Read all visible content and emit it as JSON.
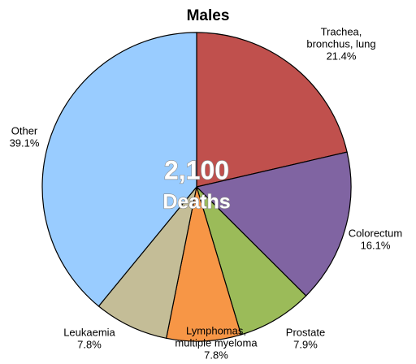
{
  "chart_data": {
    "type": "pie",
    "title": "Males",
    "categories": [
      [
        "Trachea,",
        "bronchus, lung"
      ],
      [
        "Colorectum"
      ],
      [
        "Prostate"
      ],
      [
        "Lymphomas,",
        "multiple myeloma"
      ],
      [
        "Leukaemia"
      ],
      [
        "Other"
      ]
    ],
    "values": [
      21.4,
      16.1,
      7.9,
      7.8,
      7.8,
      39.1
    ],
    "value_labels": [
      "21.4%",
      "16.1%",
      "7.9%",
      "7.8%",
      "7.8%",
      "39.1%"
    ],
    "colors": [
      "#c0504d",
      "#8064a2",
      "#9bbb59",
      "#f79646",
      "#c4bd97",
      "#99ccff"
    ],
    "annotations": [
      "2,100",
      "Deaths"
    ]
  }
}
